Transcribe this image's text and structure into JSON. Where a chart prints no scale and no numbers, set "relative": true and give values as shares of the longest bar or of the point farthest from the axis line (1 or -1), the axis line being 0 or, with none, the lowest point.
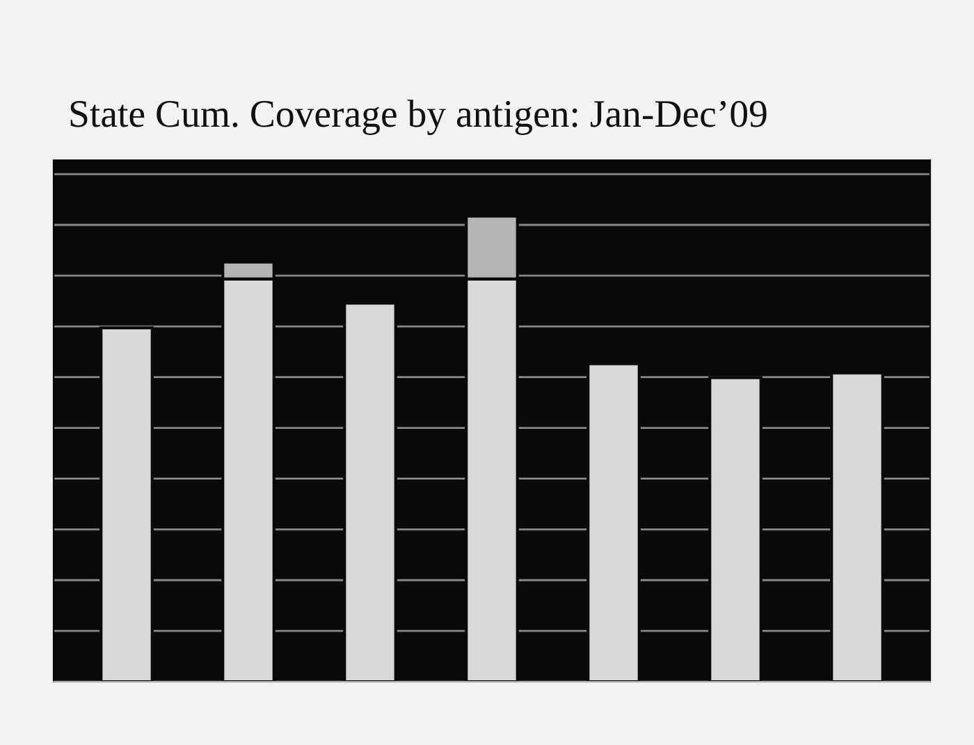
{
  "chart_data": {
    "type": "bar",
    "title": "State Cum. Coverage by antigen: Jan-Dec’09",
    "relative": true,
    "stacked": true,
    "grid": "y",
    "categories": [
      null,
      null,
      null,
      null,
      null,
      null,
      null
    ],
    "series": [
      {
        "color": "#d9d9d9",
        "values": [
          0.76,
          0.865,
          0.813,
          0.865,
          0.683,
          0.653,
          0.663
        ]
      },
      {
        "color": "#b5b5b5",
        "values": [
          null,
          0.036,
          null,
          0.135,
          null,
          null,
          null
        ]
      }
    ]
  }
}
